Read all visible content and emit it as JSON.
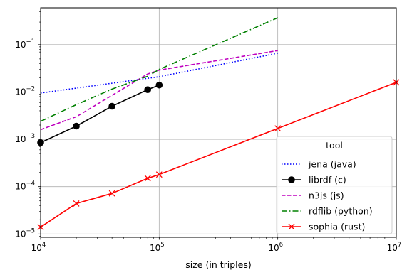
{
  "chart_data": {
    "type": "line",
    "xscale": "log",
    "yscale": "log",
    "xlim": [
      10000,
      10000000
    ],
    "ylim": [
      8.5e-06,
      0.6
    ],
    "grid": true,
    "xlabel": "size (in triples)",
    "ylabel": "",
    "x_ticks": [
      {
        "value": 10000,
        "base": "10",
        "exp": "4"
      },
      {
        "value": 100000,
        "base": "10",
        "exp": "5"
      },
      {
        "value": 1000000,
        "base": "10",
        "exp": "6"
      },
      {
        "value": 10000000,
        "base": "10",
        "exp": "7"
      }
    ],
    "y_ticks": [
      {
        "value": 1e-05,
        "base": "10",
        "exp": "−5"
      },
      {
        "value": 0.0001,
        "base": "10",
        "exp": "−4"
      },
      {
        "value": 0.001,
        "base": "10",
        "exp": "−3"
      },
      {
        "value": 0.01,
        "base": "10",
        "exp": "−2"
      },
      {
        "value": 0.1,
        "base": "10",
        "exp": "−1"
      }
    ],
    "legend": {
      "title": "tool",
      "position": "bottom-right"
    },
    "series": [
      {
        "name": "jena (java)",
        "color": "#0000ff",
        "dash": "dotted",
        "marker": "none",
        "x": [
          10000,
          100000,
          1000000
        ],
        "y": [
          0.0095,
          0.021,
          0.066
        ]
      },
      {
        "name": "librdf (c)",
        "color": "#000000",
        "dash": "solid",
        "marker": "circle",
        "x": [
          10000,
          20000,
          40000,
          80000,
          100000
        ],
        "y": [
          0.00085,
          0.0019,
          0.005,
          0.0112,
          0.014
        ]
      },
      {
        "name": "n3js (js)",
        "color": "#bf00bf",
        "dash": "dashed",
        "marker": "none",
        "x": [
          10000,
          20000,
          40000,
          80000,
          100000,
          1000000
        ],
        "y": [
          0.0016,
          0.003,
          0.0085,
          0.024,
          0.029,
          0.075
        ]
      },
      {
        "name": "rdflib (python)",
        "color": "#008000",
        "dash": "dashdot",
        "marker": "none",
        "x": [
          10000,
          20000,
          40000,
          80000,
          100000,
          1000000
        ],
        "y": [
          0.0024,
          0.0054,
          0.0115,
          0.0215,
          0.03,
          0.37
        ]
      },
      {
        "name": "sophia (rust)",
        "color": "#ff0000",
        "dash": "solid",
        "marker": "x",
        "x": [
          10000,
          20000,
          40000,
          80000,
          100000,
          1000000,
          10000000
        ],
        "y": [
          1.4e-05,
          4.4e-05,
          7.2e-05,
          0.00015,
          0.00018,
          0.0017,
          0.016
        ]
      }
    ]
  }
}
